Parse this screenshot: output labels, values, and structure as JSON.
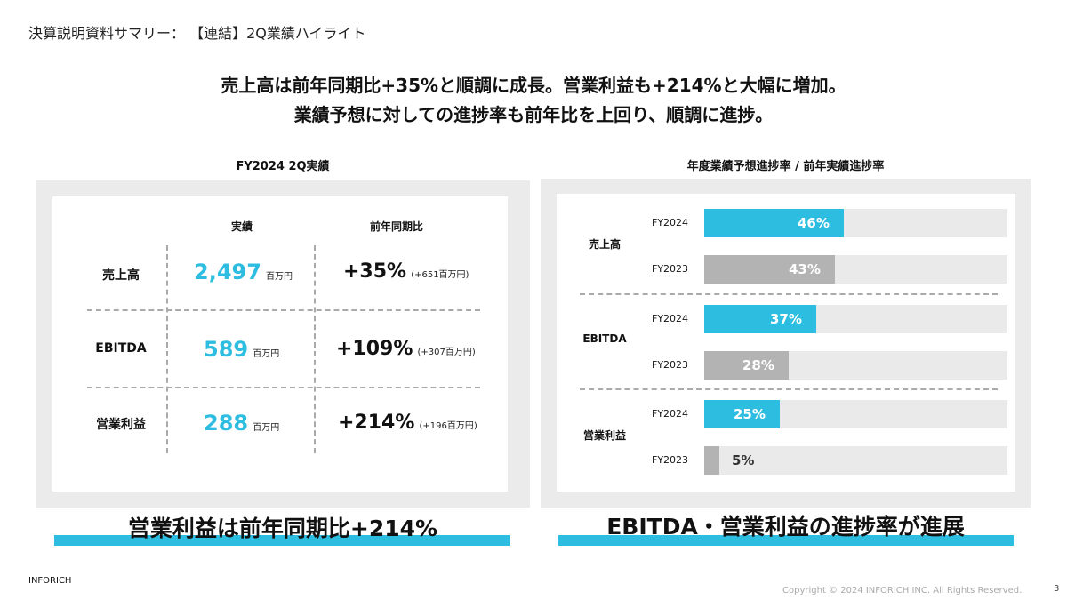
{
  "header": {
    "title": "決算説明資料サマリー： 【連結】2Q業績ハイライト",
    "headline_1": "売上高は前年同期比+35%と順調に成長。営業利益も+214%と大幅に増加。",
    "headline_2": "業績予想に対しての進捗率も前年比を上回り、順調に進捗。"
  },
  "left_section": {
    "title": "FY2024 2Q実績",
    "col_actual": "実績",
    "col_yoy": "前年同期比",
    "rows": [
      {
        "label": "売上高",
        "value": "2,497",
        "unit": "百万円",
        "yoy": "+35%",
        "yoy_detail": "(+651百万円)"
      },
      {
        "label": "EBITDA",
        "value": "589",
        "unit": "百万円",
        "yoy": "+109%",
        "yoy_detail": "(+307百万円)"
      },
      {
        "label": "営業利益",
        "value": "288",
        "unit": "百万円",
        "yoy": "+214%",
        "yoy_detail": "(+196百万円)"
      }
    ],
    "bottom_text": "営業利益は前年同期比+214%"
  },
  "right_section": {
    "title": "年度業績予想進捗率 / 前年実績進捗率",
    "bottom_text": "EBITDA・営業利益の進捗率が進展"
  },
  "chart_data": {
    "type": "bar",
    "title": "年度業績予想進捗率 / 前年実績進捗率",
    "categories": [
      "売上高",
      "EBITDA",
      "営業利益"
    ],
    "series": [
      {
        "name": "FY2024",
        "values": [
          46,
          37,
          25
        ],
        "labels": [
          "46%",
          "37%",
          "25%"
        ],
        "color": "#2dbde0"
      },
      {
        "name": "FY2023",
        "values": [
          43,
          28,
          5
        ],
        "labels": [
          "43%",
          "28%",
          "5%"
        ],
        "color": "#b3b3b3"
      }
    ],
    "ylim": [
      0,
      100
    ]
  },
  "footer": {
    "company": "INFORICH",
    "copyright": "Copyright © 2024 INFORICH INC. All Rights Reserved.",
    "page": "3"
  },
  "colors": {
    "accent": "#2dbde0",
    "prev": "#b3b3b3",
    "track": "#eaeaea",
    "panel": "#ebebeb"
  }
}
